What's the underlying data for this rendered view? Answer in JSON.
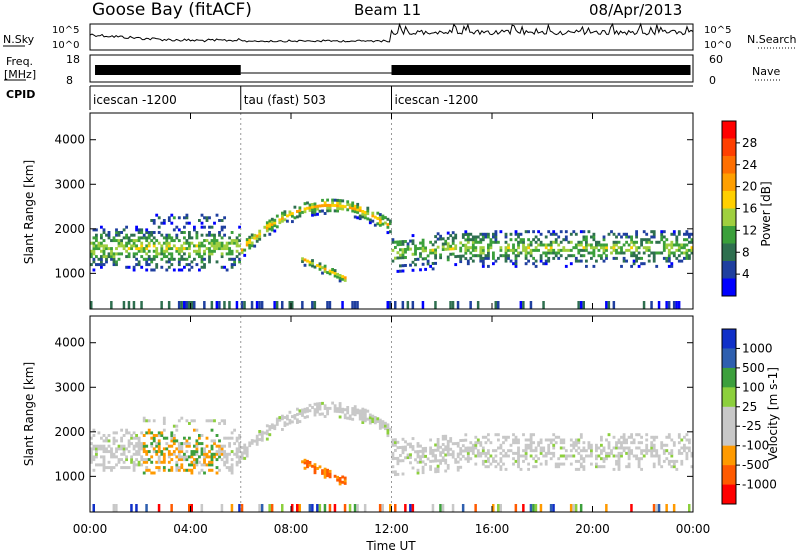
{
  "header": {
    "station": "Goose Bay (fitACF)",
    "beam": "Beam 11",
    "date": "08/Apr/2013"
  },
  "side_labels": {
    "nsky": "N.Sky",
    "freq": "Freq.",
    "freq_unit": "[MHz]",
    "cpid": "CPID",
    "nsearch": "N.Search",
    "nave": "Nave"
  },
  "noise_axis": {
    "top": "10^5",
    "bottom": "10^0"
  },
  "freq_axis": {
    "top": "18",
    "bottom": "8"
  },
  "nave_axis": {
    "top": "60",
    "bottom": "0"
  },
  "colors": {
    "power": [
      "#0000ff",
      "#1f3f9f",
      "#2e6f4f",
      "#3a9f3a",
      "#9fcf3f",
      "#ffcf00",
      "#ff9f00",
      "#ff6f00",
      "#ff3f00",
      "#ff0000"
    ],
    "velocity": [
      "#ff0000",
      "#ff5a00",
      "#ff9a00",
      "#c8c8c8",
      "#c8c8c8",
      "#8ccf3c",
      "#3c9f3c",
      "#2e5faf",
      "#1030c8"
    ]
  },
  "chart_data": [
    {
      "type": "table",
      "name_hint": "cpid",
      "segments": [
        {
          "label": "icescan -1200",
          "start": 0,
          "end": 6
        },
        {
          "label": "tau (fast) 503",
          "start": 6,
          "end": 12
        },
        {
          "label": "icescan -1200",
          "start": 12,
          "end": 24
        }
      ]
    },
    {
      "type": "heatmap",
      "ylabel": "Slant Range [km]",
      "xlabel": "Time UT",
      "xlim": [
        0,
        24
      ],
      "ylim": [
        200,
        4600
      ],
      "yticks": [
        1000,
        2000,
        3000,
        4000
      ],
      "xticklabels": [
        "00:00",
        "04:00",
        "08:00",
        "12:00",
        "16:00",
        "20:00",
        "00:00"
      ],
      "xticks": [
        0,
        4,
        8,
        12,
        16,
        20,
        24
      ],
      "colorbar": {
        "label": "Power [dB]",
        "ticks": [
          "28",
          "24",
          "20",
          "16",
          "12",
          "8",
          "4"
        ]
      }
    },
    {
      "type": "heatmap",
      "ylabel": "Slant Range [km]",
      "xlabel": "Time UT",
      "xlim": [
        0,
        24
      ],
      "ylim": [
        200,
        4600
      ],
      "yticks": [
        1000,
        2000,
        3000,
        4000
      ],
      "xticklabels": [
        "00:00",
        "04:00",
        "08:00",
        "12:00",
        "16:00",
        "20:00",
        "00:00"
      ],
      "xticks": [
        0,
        4,
        8,
        12,
        16,
        20,
        24
      ],
      "colorbar": {
        "label": "Velocity [m s-1]",
        "ticks": [
          "1000",
          "500",
          "100",
          "25",
          "-25",
          "-100",
          "-500",
          "-1000"
        ]
      }
    }
  ]
}
